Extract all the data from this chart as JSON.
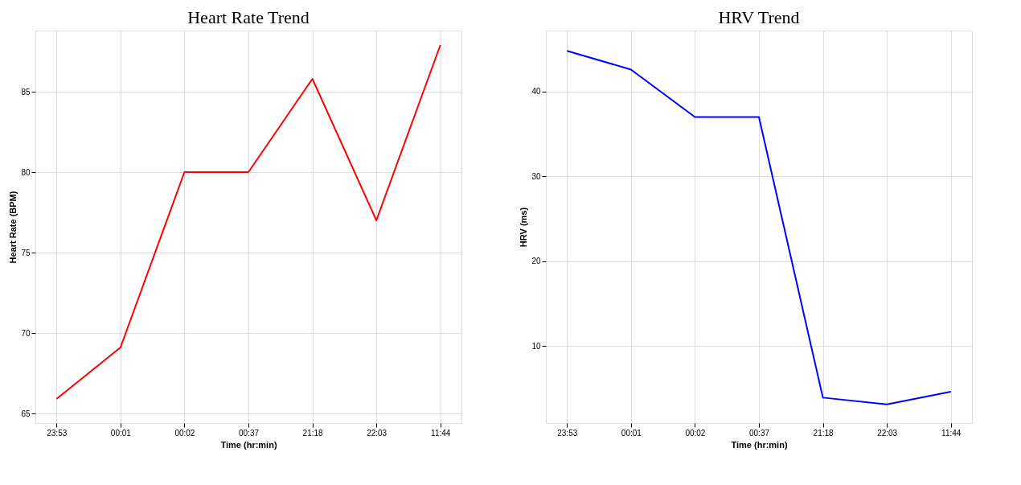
{
  "chart_data": [
    {
      "type": "line",
      "title": "Heart Rate Trend",
      "xlabel": "Time (hr:min)",
      "ylabel": "Heart Rate (BPM)",
      "categories": [
        "23:53",
        "00:01",
        "00:02",
        "00:37",
        "21:18",
        "22:03",
        "11:44"
      ],
      "series": [
        {
          "color": "#ff0000",
          "values": [
            65.9,
            69.1,
            80,
            80,
            85.8,
            77.0,
            87.9
          ]
        }
      ],
      "ylim": [
        64.4,
        88.8
      ],
      "yticks": [
        65,
        70,
        75,
        80,
        85
      ],
      "grid": true,
      "marker": "none",
      "line_style": "solid"
    },
    {
      "type": "line",
      "title": "HRV Trend",
      "xlabel": "Time (hr:min)",
      "ylabel": "HRV (ms)",
      "categories": [
        "23:53",
        "00:01",
        "00:02",
        "00:37",
        "21:18",
        "22:03",
        "11:44"
      ],
      "series": [
        {
          "color": "#0000ff",
          "values": [
            44.8,
            42.6,
            37.0,
            37.0,
            3.9,
            3.1,
            4.6
          ]
        }
      ],
      "ylim": [
        0.9,
        47.2
      ],
      "yticks": [
        10,
        20,
        30,
        40
      ],
      "grid": true,
      "marker": "none",
      "line_style": "solid"
    }
  ]
}
